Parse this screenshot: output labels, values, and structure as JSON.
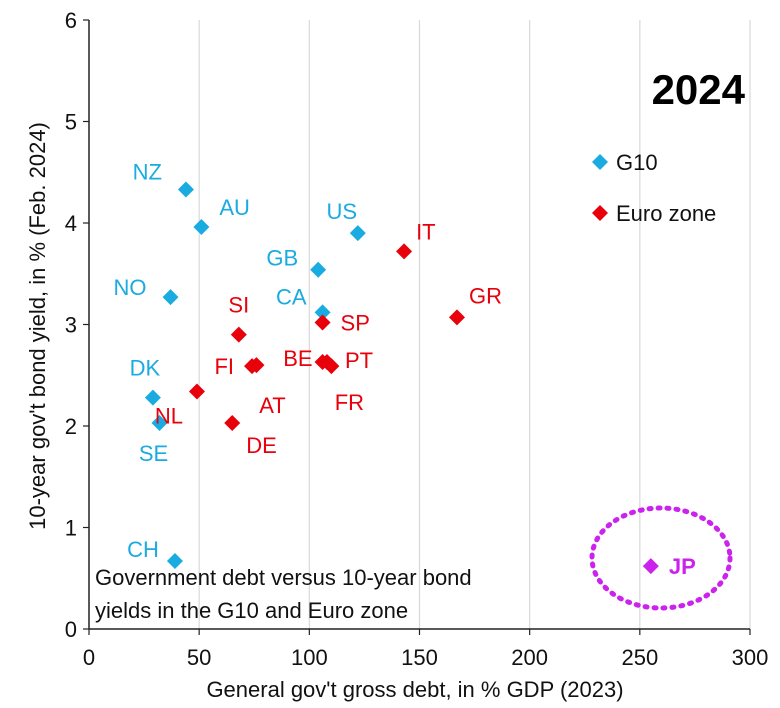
{
  "chart_data": {
    "type": "scatter",
    "year_label": "2024",
    "xlabel": "General gov't gross debt, in % GDP (2023)",
    "ylabel": "10-year gov't bond yield, in % (Feb. 2024)",
    "xlim": [
      0,
      300
    ],
    "ylim": [
      0,
      6
    ],
    "x_ticks": [
      "0",
      "50",
      "100",
      "150",
      "200",
      "250",
      "300"
    ],
    "y_ticks": [
      "0",
      "1",
      "2",
      "3",
      "4",
      "5",
      "6"
    ],
    "grid": "vertical",
    "legend_position": "top-right",
    "note": [
      "Government debt versus 10-year bond",
      "yields in the G10 and Euro zone"
    ],
    "colors": {
      "g10": "#1aabe0",
      "euro": "#e8000b",
      "jp": "#cc22ee"
    },
    "series": [
      {
        "name": "G10",
        "color_key": "g10",
        "points": [
          {
            "label": "NZ",
            "x": 44,
            "y": 4.33
          },
          {
            "label": "AU",
            "x": 51,
            "y": 3.96
          },
          {
            "label": "US",
            "x": 122,
            "y": 3.9
          },
          {
            "label": "GB",
            "x": 104,
            "y": 3.54
          },
          {
            "label": "NO",
            "x": 37,
            "y": 3.27
          },
          {
            "label": "CA",
            "x": 106,
            "y": 3.12
          },
          {
            "label": "DK",
            "x": 29,
            "y": 2.28
          },
          {
            "label": "SE",
            "x": 32,
            "y": 2.03
          },
          {
            "label": "CH",
            "x": 39,
            "y": 0.67
          }
        ]
      },
      {
        "name": "Euro zone",
        "color_key": "euro",
        "points": [
          {
            "label": "IT",
            "x": 143,
            "y": 3.72
          },
          {
            "label": "GR",
            "x": 167,
            "y": 3.07
          },
          {
            "label": "SI",
            "x": 68,
            "y": 2.9
          },
          {
            "label": "SP",
            "x": 106,
            "y": 3.02
          },
          {
            "label": "BE",
            "x": 106,
            "y": 2.63
          },
          {
            "label": "PT",
            "x": 108,
            "y": 2.63
          },
          {
            "label": "FR",
            "x": 110,
            "y": 2.59
          },
          {
            "label": "FI",
            "x": 74,
            "y": 2.59
          },
          {
            "label": "AT",
            "x": 76,
            "y": 2.6
          },
          {
            "label": "NL",
            "x": 49,
            "y": 2.34
          },
          {
            "label": "DE",
            "x": 65,
            "y": 2.03
          }
        ]
      },
      {
        "name": "",
        "color_key": "jp",
        "points": [
          {
            "label": "JP",
            "x": 255,
            "y": 0.62
          }
        ]
      }
    ]
  }
}
